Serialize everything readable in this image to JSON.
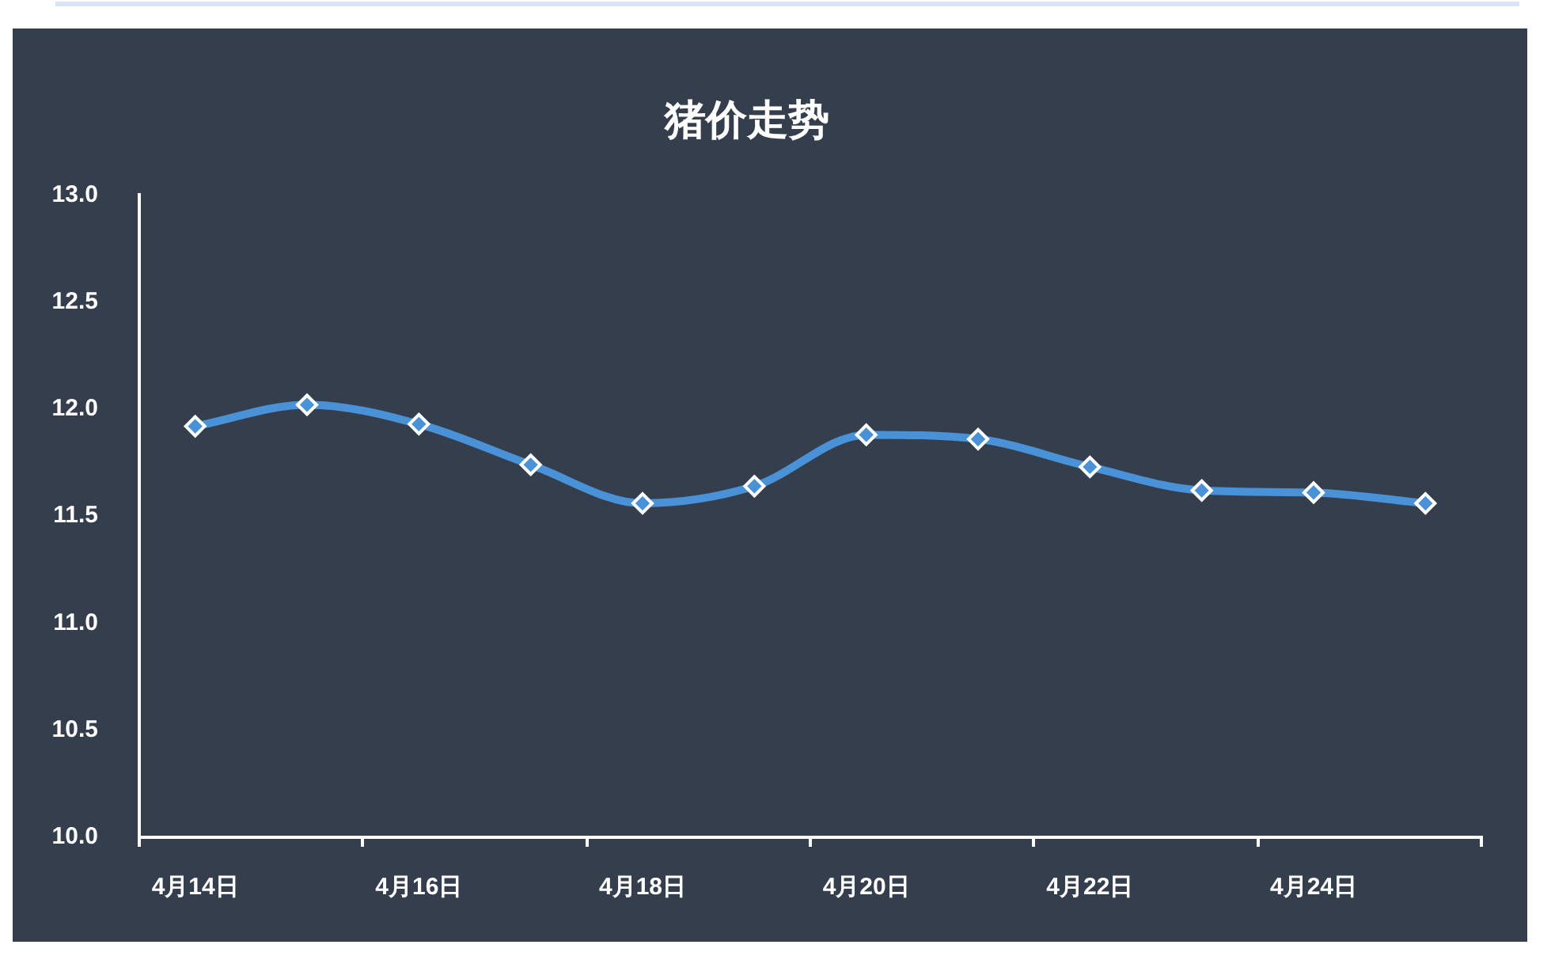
{
  "chart_data": {
    "type": "line",
    "title": "猪价走势",
    "categories": [
      "4月14日",
      null,
      "4月16日",
      null,
      "4月18日",
      null,
      "4月20日",
      null,
      "4月22日",
      null,
      "4月24日",
      null
    ],
    "series": [
      {
        "color": "#4a92d8",
        "values": [
          11.92,
          12.02,
          11.93,
          11.74,
          11.56,
          11.64,
          11.88,
          11.86,
          11.73,
          11.62,
          11.61,
          11.56
        ]
      }
    ],
    "ylim": [
      10,
      13
    ],
    "yticks": [
      {
        "value": 10,
        "label": "10.0"
      },
      {
        "value": 10.5,
        "label": "10.5"
      },
      {
        "value": 11,
        "label": "11.0"
      },
      {
        "value": 11.5,
        "label": "11.5"
      },
      {
        "value": 12,
        "label": "12.0"
      },
      {
        "value": 12.5,
        "label": "12.5"
      },
      {
        "value": 13,
        "label": "13.0"
      }
    ],
    "grid": false,
    "legend": false,
    "marker": "diamond",
    "line_style": "solid"
  }
}
